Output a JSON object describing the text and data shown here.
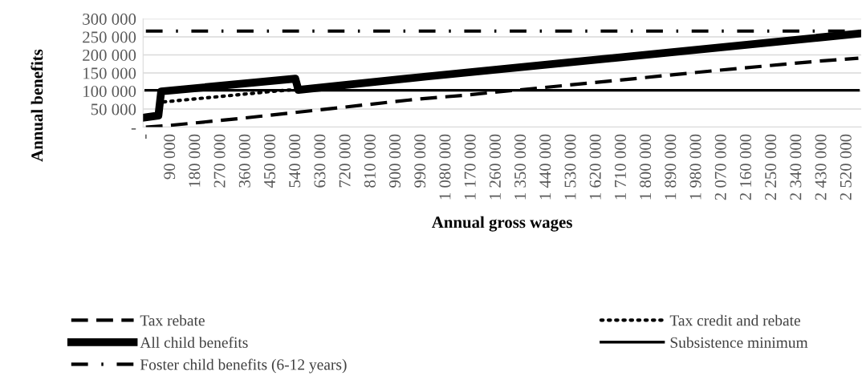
{
  "chart_data": {
    "type": "line",
    "xlabel": "Annual gross wages",
    "ylabel": "Annual benefits",
    "xlim": [
      -10000,
      2570000
    ],
    "ylim": [
      0,
      300000
    ],
    "xticks": [
      {
        "value": 0,
        "label": "-"
      },
      {
        "value": 90000,
        "label": "90 000"
      },
      {
        "value": 180000,
        "label": "180 000"
      },
      {
        "value": 270000,
        "label": "270 000"
      },
      {
        "value": 360000,
        "label": "360 000"
      },
      {
        "value": 450000,
        "label": "450 000"
      },
      {
        "value": 540000,
        "label": "540 000"
      },
      {
        "value": 630000,
        "label": "630 000"
      },
      {
        "value": 720000,
        "label": "720 000"
      },
      {
        "value": 810000,
        "label": "810 000"
      },
      {
        "value": 900000,
        "label": "900 000"
      },
      {
        "value": 990000,
        "label": "990 000"
      },
      {
        "value": 1080000,
        "label": "1 080 000"
      },
      {
        "value": 1170000,
        "label": "1 170 000"
      },
      {
        "value": 1260000,
        "label": "1 260 000"
      },
      {
        "value": 1350000,
        "label": "1 350 000"
      },
      {
        "value": 1440000,
        "label": "1 440 000"
      },
      {
        "value": 1530000,
        "label": "1 530 000"
      },
      {
        "value": 1620000,
        "label": "1 620 000"
      },
      {
        "value": 1710000,
        "label": "1 710 000"
      },
      {
        "value": 1800000,
        "label": "1 800 000"
      },
      {
        "value": 1890000,
        "label": "1 890 000"
      },
      {
        "value": 1980000,
        "label": "1 980 000"
      },
      {
        "value": 2070000,
        "label": "2 070 000"
      },
      {
        "value": 2160000,
        "label": "2 160 000"
      },
      {
        "value": 2250000,
        "label": "2 250 000"
      },
      {
        "value": 2340000,
        "label": "2 340 000"
      },
      {
        "value": 2430000,
        "label": "2 430 000"
      },
      {
        "value": 2520000,
        "label": "2 520 000"
      }
    ],
    "yticks": [
      {
        "value": 0,
        "label": "-"
      },
      {
        "value": 50000,
        "label": "50 000"
      },
      {
        "value": 100000,
        "label": "100 000"
      },
      {
        "value": 150000,
        "label": "150 000"
      },
      {
        "value": 200000,
        "label": "200 000"
      },
      {
        "value": 250000,
        "label": "250 000"
      },
      {
        "value": 300000,
        "label": "300 000"
      }
    ],
    "grid": "y",
    "legend": "bottom",
    "marker": "none",
    "series": [
      {
        "name": "Tax rebate",
        "color": "#000000",
        "line_style": "dashed",
        "x": [
          0,
          90000,
          340000,
          970000,
          1140000,
          1700000,
          2050000,
          2420000,
          2560000
        ],
        "values": [
          0,
          5000,
          24000,
          77000,
          88000,
          130000,
          157000,
          183000,
          191000
        ]
      },
      {
        "name": "Tax credit and rebate",
        "color": "#000000",
        "line_style": "dotted",
        "x": [
          0,
          45000,
          55000,
          470000,
          537000,
          548000,
          1007000,
          2560000
        ],
        "values": [
          27000,
          30000,
          69000,
          100000,
          104000,
          103000,
          140000,
          259000
        ]
      },
      {
        "name": "All child benefits",
        "color": "#000000",
        "line_style": "solid",
        "x": [
          0,
          45000,
          55000,
          537000,
          548000,
          1007000,
          2560000
        ],
        "values": [
          27000,
          32000,
          99000,
          134000,
          103000,
          140000,
          259000
        ]
      },
      {
        "name": "Subsistence minimum",
        "color": "#000000",
        "line_style": "solid",
        "x": [
          0,
          2560000
        ],
        "values": [
          102000,
          102000
        ]
      },
      {
        "name": "Foster child benefits (6-12 years)",
        "color": "#000000",
        "line_style": "dashdot",
        "x": [
          0,
          2560000
        ],
        "values": [
          266000,
          266000
        ]
      }
    ]
  }
}
